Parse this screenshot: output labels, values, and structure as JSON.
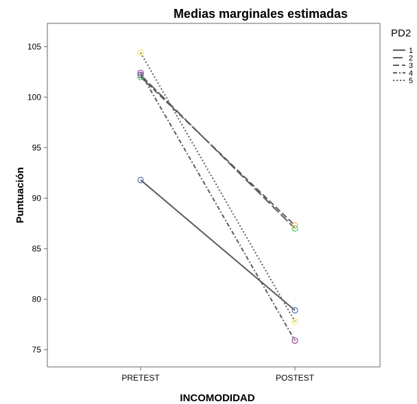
{
  "chart_data": {
    "type": "line",
    "title": "Medias marginales estimadas",
    "xlabel": "INCOMODIDAD",
    "ylabel": "Puntuación",
    "categories": [
      "PRETEST",
      "POSTEST"
    ],
    "ylim": [
      73.3,
      107.3
    ],
    "yticks": [
      75,
      80,
      85,
      90,
      95,
      100,
      105
    ],
    "legend": {
      "title": "PD2",
      "position": "right"
    },
    "series": [
      {
        "name": "1",
        "values": [
          91.8,
          78.9
        ],
        "line_color": "#5a5a5a",
        "marker_colors": [
          "#4f6db3",
          "#4f6db3"
        ],
        "dash": "solid"
      },
      {
        "name": "2",
        "values": [
          102.2,
          87.0
        ],
        "line_color": "#5a5a5a",
        "marker_colors": [
          "#7c4b9a",
          "#48c76b"
        ],
        "dash": "long-dash"
      },
      {
        "name": "3",
        "values": [
          102.0,
          87.3
        ],
        "line_color": "#5a5a5a",
        "marker_colors": [
          "#48c76b",
          "#f0b46a"
        ],
        "dash": "dash"
      },
      {
        "name": "4",
        "values": [
          102.4,
          75.9
        ],
        "line_color": "#5a5a5a",
        "marker_colors": [
          "#9a3b9e",
          "#9a3b9e"
        ],
        "dash": "dash-dot"
      },
      {
        "name": "5",
        "values": [
          104.4,
          77.8
        ],
        "line_color": "#5a5a5a",
        "marker_colors": [
          "#f2e45d",
          "#f2e45d"
        ],
        "dash": "dot"
      }
    ]
  }
}
